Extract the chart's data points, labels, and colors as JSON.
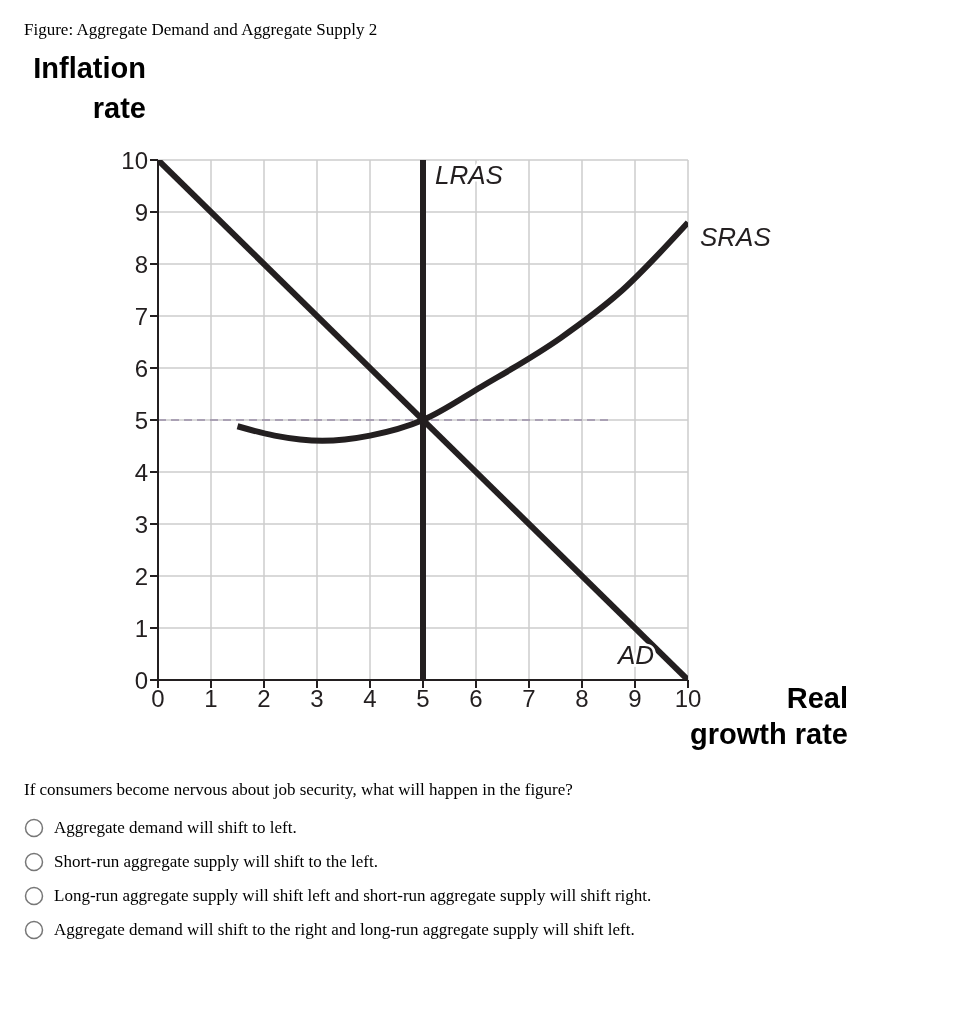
{
  "chart_data": {
    "type": "line",
    "title": "Figure: Aggregate Demand and Aggregate Supply 2",
    "xlabel": "Real growth rate",
    "ylabel": "Inflation rate",
    "xlim": [
      0,
      10
    ],
    "ylim": [
      0,
      10
    ],
    "xticks": [
      0,
      1,
      2,
      3,
      4,
      5,
      6,
      7,
      8,
      9,
      10
    ],
    "yticks": [
      0,
      1,
      2,
      3,
      4,
      5,
      6,
      7,
      8,
      9,
      10
    ],
    "grid": true,
    "series": [
      {
        "color": "#9b8ea8",
        "line_style": "dashed",
        "x": [
          0,
          8.5
        ],
        "values": [
          5,
          5
        ]
      },
      {
        "name": "LRAS",
        "color": "#231f20",
        "x": [
          5,
          5
        ],
        "values": [
          0,
          10
        ]
      },
      {
        "name": "SRAS",
        "color": "#231f20",
        "x": [
          1.5,
          2.2,
          3.1,
          4,
          5,
          6.1,
          7.6,
          8.7,
          10
        ],
        "values": [
          4.88,
          4.7,
          4.6,
          4.7,
          5,
          5.64,
          6.58,
          7.44,
          8.8
        ]
      },
      {
        "name": "AD",
        "color": "#231f20",
        "x": [
          0,
          10
        ],
        "values": [
          10,
          0
        ]
      }
    ],
    "annotations": [
      "If consumers become nervous about job security, what will happen in the figure?",
      "Aggregate demand will shift to left.",
      "Short-run aggregate supply will shift to the left.",
      "Long-run aggregate supply will shift left and short-run aggregate supply will shift right.",
      "Aggregate demand will shift to the right and long-run aggregate supply will shift left."
    ]
  }
}
